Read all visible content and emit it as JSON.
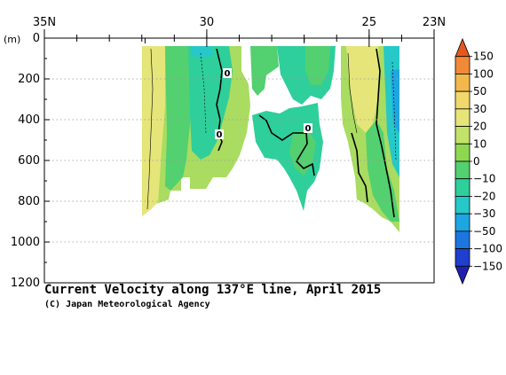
{
  "chart_data": {
    "type": "heatmap",
    "title": "Current Velocity along 137°E line, April 2015",
    "credit": "(C) Japan Meteorological Agency",
    "x_axis": {
      "ticks": [
        {
          "value": 35,
          "label": "35N"
        },
        {
          "value": 30,
          "label": "30"
        },
        {
          "value": 25,
          "label": "25"
        },
        {
          "value": 23,
          "label": "23N"
        }
      ],
      "range": [
        35,
        23
      ],
      "position": "top"
    },
    "y_axis": {
      "unit_label": "(m)",
      "ticks": [
        0,
        200,
        400,
        600,
        800,
        1000,
        1200
      ],
      "range": [
        0,
        1200
      ],
      "inverted": true,
      "grid": "dotted"
    },
    "contour_labels": [
      "0",
      "0",
      "0"
    ],
    "colorbar": {
      "labels": [
        "150",
        "100",
        "50",
        "30",
        "20",
        "10",
        "0",
        "−10",
        "−20",
        "−30",
        "−50",
        "−100",
        "−150"
      ],
      "colors": [
        "#e4581f",
        "#f08a3a",
        "#f3b84c",
        "#f2d86a",
        "#e5e57a",
        "#c2e26a",
        "#8ed850",
        "#53d070",
        "#2ecf9a",
        "#27c8c8",
        "#1ea6e2",
        "#1c76e0",
        "#1f3fcc",
        "#2020b0"
      ]
    },
    "colors": {
      "data_edge": "#f2d86a",
      "warm_fill": "#e5e57a",
      "mid_fill": "#a9dc60",
      "green_fill": "#53d070",
      "cool_fill": "#2ecf9a",
      "cyan_fill": "#27c8c8",
      "blue_fill": "#1ea6e2"
    }
  }
}
